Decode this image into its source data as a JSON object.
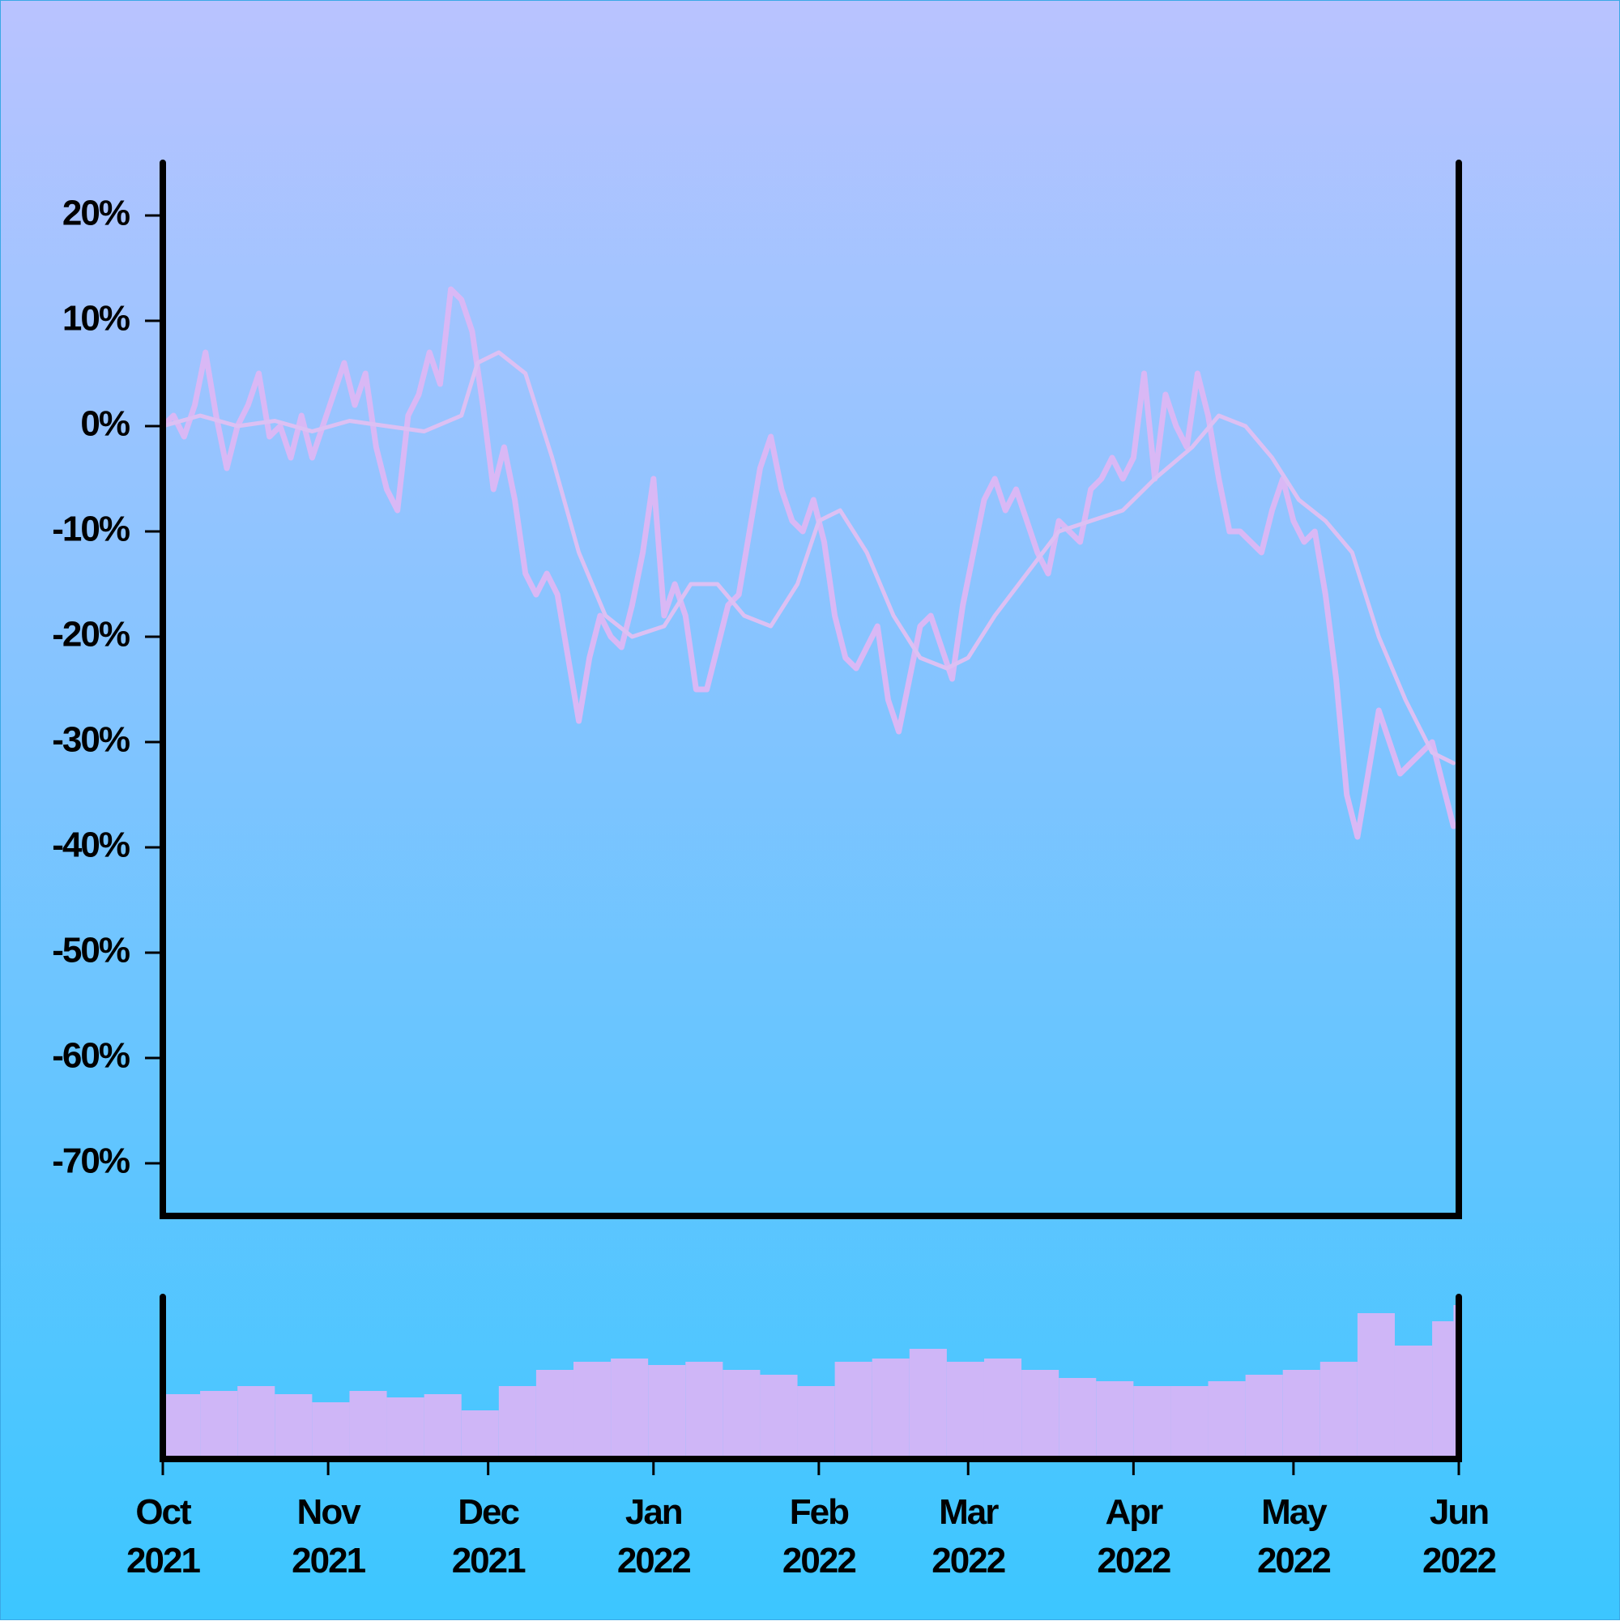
{
  "colors": {
    "background_top": "#b9c3ff",
    "background_bottom": "#3cc6ff",
    "price_line": "#d9b8f5",
    "ma_line": "#dcc0f3",
    "volume_bars": "#cfb6f7",
    "axis": "#000000"
  },
  "chart_data": {
    "type": "line",
    "title": "",
    "xlabel": "",
    "ylabel": "",
    "y_unit": "%",
    "ylim": [
      -75,
      25
    ],
    "grid": false,
    "legend": "none",
    "x_range": [
      "2021-10-01",
      "2022-06-01"
    ],
    "x_ticks": [
      {
        "date": "2021-10-01",
        "month": "Oct",
        "year": "2021"
      },
      {
        "date": "2021-11-01",
        "month": "Nov",
        "year": "2021"
      },
      {
        "date": "2021-12-01",
        "month": "Dec",
        "year": "2021"
      },
      {
        "date": "2022-01-01",
        "month": "Jan",
        "year": "2022"
      },
      {
        "date": "2022-02-01",
        "month": "Feb",
        "year": "2022"
      },
      {
        "date": "2022-03-01",
        "month": "Mar",
        "year": "2022"
      },
      {
        "date": "2022-04-01",
        "month": "Apr",
        "year": "2022"
      },
      {
        "date": "2022-05-01",
        "month": "May",
        "year": "2022"
      },
      {
        "date": "2022-06-01",
        "month": "Jun",
        "year": "2022"
      }
    ],
    "y_ticks": [
      {
        "value": 20,
        "label": "20%"
      },
      {
        "value": 10,
        "label": "10%"
      },
      {
        "value": 0,
        "label": "0%"
      },
      {
        "value": -10,
        "label": "-10%"
      },
      {
        "value": -20,
        "label": "-20%"
      },
      {
        "value": -30,
        "label": "-30%"
      },
      {
        "value": -40,
        "label": "-40%"
      },
      {
        "value": -50,
        "label": "-50%"
      },
      {
        "value": -60,
        "label": "-60%"
      },
      {
        "value": -70,
        "label": "-70%"
      }
    ],
    "series": [
      {
        "key": "price",
        "values": [
          [
            "2021-10-01",
            0
          ],
          [
            "2021-10-03",
            1
          ],
          [
            "2021-10-05",
            -1
          ],
          [
            "2021-10-07",
            2
          ],
          [
            "2021-10-09",
            7
          ],
          [
            "2021-10-11",
            1
          ],
          [
            "2021-10-13",
            -4
          ],
          [
            "2021-10-15",
            0
          ],
          [
            "2021-10-17",
            2
          ],
          [
            "2021-10-19",
            5
          ],
          [
            "2021-10-21",
            -1
          ],
          [
            "2021-10-23",
            0
          ],
          [
            "2021-10-25",
            -3
          ],
          [
            "2021-10-27",
            1
          ],
          [
            "2021-10-29",
            -3
          ],
          [
            "2021-10-31",
            0
          ],
          [
            "2021-11-02",
            3
          ],
          [
            "2021-11-04",
            6
          ],
          [
            "2021-11-06",
            2
          ],
          [
            "2021-11-08",
            5
          ],
          [
            "2021-11-10",
            -2
          ],
          [
            "2021-11-12",
            -6
          ],
          [
            "2021-11-14",
            -8
          ],
          [
            "2021-11-16",
            1
          ],
          [
            "2021-11-18",
            3
          ],
          [
            "2021-11-20",
            7
          ],
          [
            "2021-11-22",
            4
          ],
          [
            "2021-11-24",
            13
          ],
          [
            "2021-11-26",
            12
          ],
          [
            "2021-11-28",
            9
          ],
          [
            "2021-11-30",
            2
          ],
          [
            "2021-12-02",
            -6
          ],
          [
            "2021-12-04",
            -2
          ],
          [
            "2021-12-06",
            -7
          ],
          [
            "2021-12-08",
            -14
          ],
          [
            "2021-12-10",
            -16
          ],
          [
            "2021-12-12",
            -14
          ],
          [
            "2021-12-14",
            -16
          ],
          [
            "2021-12-16",
            -22
          ],
          [
            "2021-12-18",
            -28
          ],
          [
            "2021-12-20",
            -22
          ],
          [
            "2021-12-22",
            -18
          ],
          [
            "2021-12-24",
            -20
          ],
          [
            "2021-12-26",
            -21
          ],
          [
            "2021-12-28",
            -17
          ],
          [
            "2021-12-30",
            -12
          ],
          [
            "2022-01-01",
            -5
          ],
          [
            "2022-01-03",
            -18
          ],
          [
            "2022-01-05",
            -15
          ],
          [
            "2022-01-07",
            -18
          ],
          [
            "2022-01-09",
            -25
          ],
          [
            "2022-01-11",
            -25
          ],
          [
            "2022-01-13",
            -21
          ],
          [
            "2022-01-15",
            -17
          ],
          [
            "2022-01-17",
            -16
          ],
          [
            "2022-01-19",
            -10
          ],
          [
            "2022-01-21",
            -4
          ],
          [
            "2022-01-23",
            -1
          ],
          [
            "2022-01-25",
            -6
          ],
          [
            "2022-01-27",
            -9
          ],
          [
            "2022-01-29",
            -10
          ],
          [
            "2022-01-31",
            -7
          ],
          [
            "2022-02-02",
            -11
          ],
          [
            "2022-02-04",
            -18
          ],
          [
            "2022-02-06",
            -22
          ],
          [
            "2022-02-08",
            -23
          ],
          [
            "2022-02-10",
            -21
          ],
          [
            "2022-02-12",
            -19
          ],
          [
            "2022-02-14",
            -26
          ],
          [
            "2022-02-16",
            -29
          ],
          [
            "2022-02-18",
            -24
          ],
          [
            "2022-02-20",
            -19
          ],
          [
            "2022-02-22",
            -18
          ],
          [
            "2022-02-24",
            -21
          ],
          [
            "2022-02-26",
            -24
          ],
          [
            "2022-02-28",
            -17
          ],
          [
            "2022-03-02",
            -12
          ],
          [
            "2022-03-04",
            -7
          ],
          [
            "2022-03-06",
            -5
          ],
          [
            "2022-03-08",
            -8
          ],
          [
            "2022-03-10",
            -6
          ],
          [
            "2022-03-12",
            -9
          ],
          [
            "2022-03-14",
            -12
          ],
          [
            "2022-03-16",
            -14
          ],
          [
            "2022-03-18",
            -9
          ],
          [
            "2022-03-20",
            -10
          ],
          [
            "2022-03-22",
            -11
          ],
          [
            "2022-03-24",
            -6
          ],
          [
            "2022-03-26",
            -5
          ],
          [
            "2022-03-28",
            -3
          ],
          [
            "2022-03-30",
            -5
          ],
          [
            "2022-04-01",
            -3
          ],
          [
            "2022-04-03",
            5
          ],
          [
            "2022-04-05",
            -5
          ],
          [
            "2022-04-07",
            3
          ],
          [
            "2022-04-09",
            0
          ],
          [
            "2022-04-11",
            -2
          ],
          [
            "2022-04-13",
            5
          ],
          [
            "2022-04-15",
            1
          ],
          [
            "2022-04-17",
            -5
          ],
          [
            "2022-04-19",
            -10
          ],
          [
            "2022-04-21",
            -10
          ],
          [
            "2022-04-23",
            -11
          ],
          [
            "2022-04-25",
            -12
          ],
          [
            "2022-04-27",
            -8
          ],
          [
            "2022-04-29",
            -5
          ],
          [
            "2022-05-01",
            -9
          ],
          [
            "2022-05-03",
            -11
          ],
          [
            "2022-05-05",
            -10
          ],
          [
            "2022-05-07",
            -16
          ],
          [
            "2022-05-09",
            -24
          ],
          [
            "2022-05-11",
            -35
          ],
          [
            "2022-05-13",
            -39
          ],
          [
            "2022-05-15",
            -33
          ],
          [
            "2022-05-17",
            -27
          ],
          [
            "2022-05-19",
            -30
          ],
          [
            "2022-05-21",
            -33
          ],
          [
            "2022-05-23",
            -32
          ],
          [
            "2022-05-25",
            -31
          ],
          [
            "2022-05-27",
            -30
          ],
          [
            "2022-05-29",
            -34
          ],
          [
            "2022-05-31",
            -38
          ]
        ]
      },
      {
        "key": "moving_average",
        "values": [
          [
            "2021-10-01",
            0
          ],
          [
            "2021-10-08",
            1
          ],
          [
            "2021-10-15",
            0
          ],
          [
            "2021-10-22",
            0.5
          ],
          [
            "2021-10-29",
            -0.5
          ],
          [
            "2021-11-05",
            0.5
          ],
          [
            "2021-11-12",
            0
          ],
          [
            "2021-11-19",
            -0.5
          ],
          [
            "2021-11-26",
            1
          ],
          [
            "2021-11-29",
            6
          ],
          [
            "2021-12-03",
            7
          ],
          [
            "2021-12-08",
            5
          ],
          [
            "2021-12-13",
            -3
          ],
          [
            "2021-12-18",
            -12
          ],
          [
            "2021-12-23",
            -18
          ],
          [
            "2021-12-28",
            -20
          ],
          [
            "2022-01-03",
            -19
          ],
          [
            "2022-01-08",
            -15
          ],
          [
            "2022-01-13",
            -15
          ],
          [
            "2022-01-18",
            -18
          ],
          [
            "2022-01-23",
            -19
          ],
          [
            "2022-01-28",
            -15
          ],
          [
            "2022-02-01",
            -9
          ],
          [
            "2022-02-05",
            -8
          ],
          [
            "2022-02-10",
            -12
          ],
          [
            "2022-02-15",
            -18
          ],
          [
            "2022-02-20",
            -22
          ],
          [
            "2022-02-25",
            -23
          ],
          [
            "2022-03-01",
            -22
          ],
          [
            "2022-03-06",
            -18
          ],
          [
            "2022-03-12",
            -14
          ],
          [
            "2022-03-18",
            -10
          ],
          [
            "2022-03-24",
            -9
          ],
          [
            "2022-03-30",
            -8
          ],
          [
            "2022-04-05",
            -5
          ],
          [
            "2022-04-12",
            -2
          ],
          [
            "2022-04-17",
            1
          ],
          [
            "2022-04-22",
            0
          ],
          [
            "2022-04-27",
            -3
          ],
          [
            "2022-05-02",
            -7
          ],
          [
            "2022-05-07",
            -9
          ],
          [
            "2022-05-12",
            -12
          ],
          [
            "2022-05-17",
            -20
          ],
          [
            "2022-05-22",
            -26
          ],
          [
            "2022-05-27",
            -31
          ],
          [
            "2022-05-31",
            -32
          ]
        ]
      }
    ],
    "volume": {
      "ylim": [
        0,
        100
      ],
      "values": [
        [
          "2021-10-01",
          40
        ],
        [
          "2021-10-08",
          42
        ],
        [
          "2021-10-15",
          45
        ],
        [
          "2021-10-22",
          40
        ],
        [
          "2021-10-29",
          35
        ],
        [
          "2021-11-05",
          42
        ],
        [
          "2021-11-12",
          38
        ],
        [
          "2021-11-19",
          40
        ],
        [
          "2021-11-26",
          30
        ],
        [
          "2021-12-03",
          45
        ],
        [
          "2021-12-10",
          55
        ],
        [
          "2021-12-17",
          60
        ],
        [
          "2021-12-24",
          62
        ],
        [
          "2021-12-31",
          58
        ],
        [
          "2022-01-07",
          60
        ],
        [
          "2022-01-14",
          55
        ],
        [
          "2022-01-21",
          52
        ],
        [
          "2022-01-28",
          45
        ],
        [
          "2022-02-04",
          60
        ],
        [
          "2022-02-11",
          62
        ],
        [
          "2022-02-18",
          68
        ],
        [
          "2022-02-25",
          60
        ],
        [
          "2022-03-04",
          62
        ],
        [
          "2022-03-11",
          55
        ],
        [
          "2022-03-18",
          50
        ],
        [
          "2022-03-25",
          48
        ],
        [
          "2022-04-01",
          45
        ],
        [
          "2022-04-08",
          45
        ],
        [
          "2022-04-15",
          48
        ],
        [
          "2022-04-22",
          52
        ],
        [
          "2022-04-29",
          55
        ],
        [
          "2022-05-06",
          60
        ],
        [
          "2022-05-13",
          90
        ],
        [
          "2022-05-20",
          70
        ],
        [
          "2022-05-27",
          85
        ],
        [
          "2022-05-31",
          95
        ]
      ]
    }
  }
}
